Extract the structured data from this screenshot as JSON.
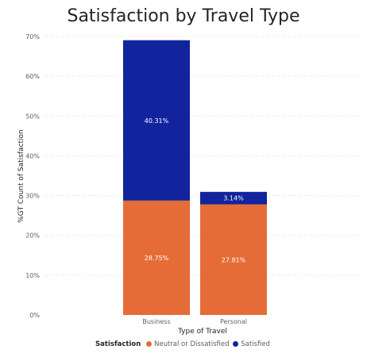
{
  "chart_data": {
    "type": "bar",
    "stacked": true,
    "title": "Satisfaction by Travel Type",
    "xlabel": "Type of Travel",
    "ylabel": "%GT Count of Satisfaction",
    "categories": [
      "Business",
      "Personal"
    ],
    "series": [
      {
        "name": "Neutral or Dissatisfied",
        "values": [
          28.75,
          27.81
        ],
        "labels": [
          "28.75%",
          "27.81%"
        ],
        "color": "#e66c37"
      },
      {
        "name": "Satisfied",
        "values": [
          40.31,
          3.14
        ],
        "labels": [
          "40.31%",
          "3.14%"
        ],
        "color": "#12239e"
      }
    ],
    "ylim": [
      0,
      70
    ],
    "yticks": [
      "0%",
      "10%",
      "20%",
      "30%",
      "40%",
      "50%",
      "60%",
      "70%"
    ],
    "grid": true,
    "legend": {
      "title": "Satisfaction",
      "placement": "bottom"
    }
  }
}
